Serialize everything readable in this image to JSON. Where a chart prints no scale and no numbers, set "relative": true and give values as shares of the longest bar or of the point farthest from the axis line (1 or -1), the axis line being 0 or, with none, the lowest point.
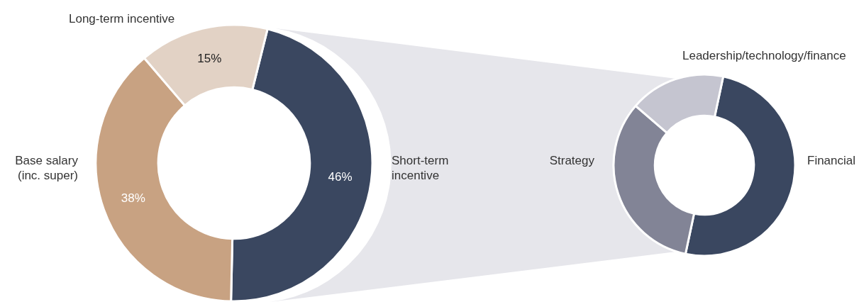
{
  "chart_data": [
    {
      "type": "donut",
      "categories": [
        "Short-term incentive",
        "Base salary (inc. super)",
        "Long-term incentive"
      ],
      "values": [
        46,
        38,
        15
      ],
      "colors": [
        "#3a4760",
        "#c8a282",
        "#e2d2c5"
      ],
      "value_labels": [
        "46%",
        "38%",
        "15%"
      ],
      "legend": false
    },
    {
      "type": "donut",
      "relative": true,
      "categories": [
        "Financial",
        "Strategy",
        "Leadership/technology/finance"
      ],
      "values": [
        50,
        33,
        17
      ],
      "colors": [
        "#3a4760",
        "#828496",
        "#c5c5d0"
      ],
      "legend": false
    }
  ]
}
